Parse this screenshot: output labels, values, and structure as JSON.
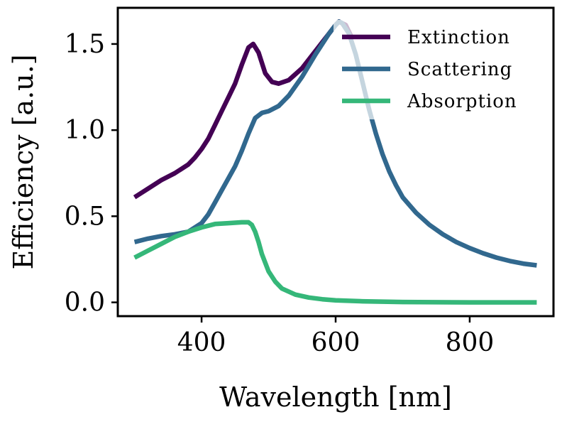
{
  "chart_data": {
    "type": "line",
    "xlabel": "Wavelength [nm]",
    "ylabel": "Efficiency [a.u.]",
    "xlim": [
      275,
      925
    ],
    "ylim": [
      -0.08,
      1.71
    ],
    "xticks": [
      400,
      600,
      800
    ],
    "yticks": [
      0.0,
      0.5,
      1.0,
      1.5
    ],
    "xtick_labels": [
      "400",
      "600",
      "800"
    ],
    "ytick_labels": [
      "0.0",
      "0.5",
      "1.0",
      "1.5"
    ],
    "grid": false,
    "legend_position": "top-right",
    "series": [
      {
        "name": "Extinction",
        "color": "#440154",
        "points": [
          [
            300,
            0.61
          ],
          [
            320,
            0.66
          ],
          [
            340,
            0.71
          ],
          [
            360,
            0.75
          ],
          [
            380,
            0.8
          ],
          [
            390,
            0.84
          ],
          [
            400,
            0.89
          ],
          [
            410,
            0.95
          ],
          [
            420,
            1.03
          ],
          [
            430,
            1.11
          ],
          [
            440,
            1.19
          ],
          [
            450,
            1.27
          ],
          [
            460,
            1.38
          ],
          [
            470,
            1.48
          ],
          [
            477,
            1.5
          ],
          [
            485,
            1.45
          ],
          [
            495,
            1.33
          ],
          [
            505,
            1.28
          ],
          [
            515,
            1.27
          ],
          [
            530,
            1.29
          ],
          [
            550,
            1.36
          ],
          [
            570,
            1.46
          ],
          [
            590,
            1.56
          ],
          [
            600,
            1.61
          ],
          [
            605,
            1.63
          ],
          [
            615,
            1.61
          ],
          [
            625,
            1.53
          ]
        ]
      },
      {
        "name": "Scattering",
        "color": "#31688e",
        "points": [
          [
            300,
            0.35
          ],
          [
            320,
            0.37
          ],
          [
            340,
            0.385
          ],
          [
            360,
            0.395
          ],
          [
            380,
            0.41
          ],
          [
            400,
            0.46
          ],
          [
            410,
            0.51
          ],
          [
            420,
            0.58
          ],
          [
            430,
            0.65
          ],
          [
            440,
            0.72
          ],
          [
            450,
            0.79
          ],
          [
            460,
            0.88
          ],
          [
            470,
            0.98
          ],
          [
            480,
            1.07
          ],
          [
            490,
            1.1
          ],
          [
            500,
            1.11
          ],
          [
            515,
            1.14
          ],
          [
            530,
            1.2
          ],
          [
            550,
            1.31
          ],
          [
            570,
            1.44
          ],
          [
            590,
            1.56
          ],
          [
            600,
            1.61
          ],
          [
            605,
            1.63
          ],
          [
            610,
            1.62
          ],
          [
            620,
            1.56
          ],
          [
            630,
            1.44
          ],
          [
            640,
            1.28
          ],
          [
            650,
            1.12
          ],
          [
            660,
            0.98
          ],
          [
            670,
            0.86
          ],
          [
            680,
            0.76
          ],
          [
            690,
            0.68
          ],
          [
            700,
            0.61
          ],
          [
            720,
            0.52
          ],
          [
            740,
            0.45
          ],
          [
            760,
            0.395
          ],
          [
            780,
            0.35
          ],
          [
            800,
            0.315
          ],
          [
            820,
            0.285
          ],
          [
            840,
            0.26
          ],
          [
            860,
            0.24
          ],
          [
            880,
            0.225
          ],
          [
            900,
            0.215
          ]
        ]
      },
      {
        "name": "Absorption",
        "color": "#35b779",
        "points": [
          [
            300,
            0.26
          ],
          [
            320,
            0.3
          ],
          [
            340,
            0.34
          ],
          [
            360,
            0.38
          ],
          [
            380,
            0.41
          ],
          [
            400,
            0.435
          ],
          [
            420,
            0.455
          ],
          [
            440,
            0.46
          ],
          [
            460,
            0.465
          ],
          [
            470,
            0.465
          ],
          [
            475,
            0.45
          ],
          [
            480,
            0.41
          ],
          [
            485,
            0.35
          ],
          [
            490,
            0.28
          ],
          [
            500,
            0.18
          ],
          [
            510,
            0.12
          ],
          [
            520,
            0.08
          ],
          [
            540,
            0.045
          ],
          [
            560,
            0.028
          ],
          [
            580,
            0.018
          ],
          [
            600,
            0.012
          ],
          [
            640,
            0.006
          ],
          [
            700,
            0.002
          ],
          [
            800,
            0.0
          ],
          [
            900,
            0.0
          ]
        ]
      }
    ]
  }
}
